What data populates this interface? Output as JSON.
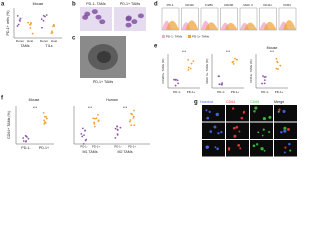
{
  "panels": {
    "a": {
      "letter": "a",
      "title": "Mouse",
      "y_label": "PD-1+ cells (%)",
      "groups": [
        "Donor",
        "Host",
        "Donor",
        "Host"
      ],
      "sets": [
        "TAMs",
        "TILs"
      ]
    },
    "b": {
      "letter": "b",
      "labels": [
        "PD-1- TAMs",
        "PD-1+ TAMs"
      ]
    },
    "c": {
      "letter": "c",
      "label": "PD-1+ TAMs"
    },
    "d": {
      "letter": "d",
      "markers": [
        "PD-1",
        "CD11b",
        "F4/80",
        "CD206",
        "MHC II",
        "CD11c",
        "CD64"
      ],
      "legend": [
        "PD-1- TAMs",
        "PD-1+ TAMs"
      ]
    },
    "e": {
      "letter": "e",
      "title": "Mouse",
      "y_labels": [
        "CD206+ TAMs (%)",
        "MHC II+ TAMs (%)",
        "CD64+ TAMs (%)"
      ],
      "groups": [
        "PD-1-",
        "PD-1+"
      ],
      "stars": "***"
    },
    "f": {
      "letter": "f",
      "titles": [
        "Mouse",
        "Human"
      ],
      "y_label": "CD64+ TAMs (%)",
      "groups": [
        "PD-1-",
        "PD-1+"
      ],
      "subgroups": [
        "M1 TAMs",
        "M2 TAMs"
      ],
      "stars": "***"
    },
    "g": {
      "letter": "g",
      "channels": [
        "Hoechst",
        "CD64",
        "CD68",
        "Merge"
      ]
    }
  }
}
